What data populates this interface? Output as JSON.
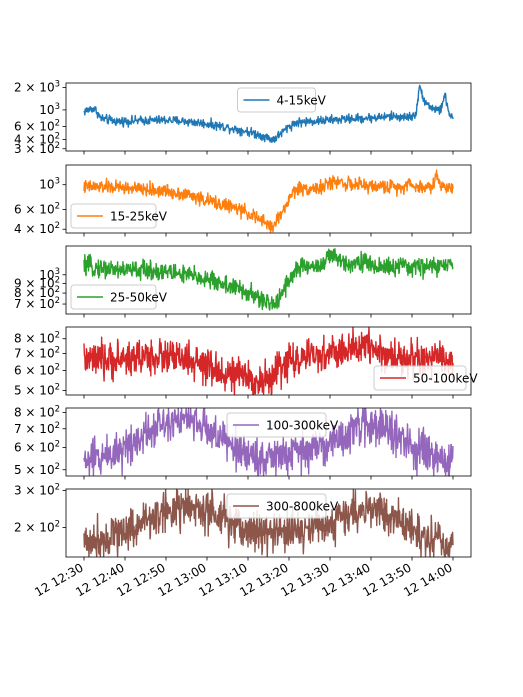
{
  "chart_data": {
    "type": "line",
    "x_ticks": [
      "12 12:30",
      "12 12:40",
      "12 12:50",
      "12 13:00",
      "12 13:10",
      "12 13:20",
      "12 13:30",
      "12 13:40",
      "12 13:50",
      "12 14:00"
    ],
    "x_range_minutes": [
      0,
      90
    ],
    "panels": [
      {
        "name": "4-15keV",
        "color": "#1f77b4",
        "legend_loc": "upper-center",
        "yscale": "log",
        "ylim": [
          280,
          2300
        ],
        "yticks": [
          {
            "v": 2000,
            "m": "2",
            "e": "3"
          },
          {
            "v": 1000,
            "m": "",
            "e": "3"
          },
          {
            "v": 600,
            "m": "6",
            "e": "2"
          },
          {
            "v": 400,
            "m": "4",
            "e": "2"
          },
          {
            "v": 300,
            "m": "3",
            "e": "2"
          }
        ],
        "noise": 0.03,
        "points": [
          [
            0,
            950
          ],
          [
            2,
            1050
          ],
          [
            3,
            980
          ],
          [
            4,
            770
          ],
          [
            8,
            700
          ],
          [
            15,
            720
          ],
          [
            20,
            730
          ],
          [
            25,
            700
          ],
          [
            30,
            650
          ],
          [
            35,
            580
          ],
          [
            40,
            510
          ],
          [
            44,
            440
          ],
          [
            46,
            400
          ],
          [
            47,
            430
          ],
          [
            48,
            480
          ],
          [
            50,
            600
          ],
          [
            52,
            680
          ],
          [
            55,
            700
          ],
          [
            60,
            730
          ],
          [
            65,
            760
          ],
          [
            70,
            780
          ],
          [
            75,
            820
          ],
          [
            78,
            800
          ],
          [
            80,
            810
          ],
          [
            81,
            900
          ],
          [
            82,
            2050
          ],
          [
            83,
            1300
          ],
          [
            85,
            1050
          ],
          [
            87,
            980
          ],
          [
            88,
            1600
          ],
          [
            88.6,
            1100
          ],
          [
            89,
            900
          ],
          [
            90,
            780
          ]
        ]
      },
      {
        "name": "15-25keV",
        "color": "#ff7f0e",
        "legend_loc": "lower-left",
        "yscale": "log",
        "ylim": [
          370,
          1500
        ],
        "yticks": [
          {
            "v": 1000,
            "m": "",
            "e": "3"
          },
          {
            "v": 600,
            "m": "6",
            "e": "2"
          },
          {
            "v": 400,
            "m": "4",
            "e": "2"
          }
        ],
        "noise": 0.03,
        "points": [
          [
            0,
            950
          ],
          [
            5,
            960
          ],
          [
            10,
            940
          ],
          [
            15,
            900
          ],
          [
            20,
            880
          ],
          [
            25,
            820
          ],
          [
            30,
            720
          ],
          [
            35,
            650
          ],
          [
            40,
            560
          ],
          [
            43,
            480
          ],
          [
            45,
            440
          ],
          [
            46,
            420
          ],
          [
            47,
            470
          ],
          [
            49,
            620
          ],
          [
            50,
            740
          ],
          [
            51,
            860
          ],
          [
            52,
            920
          ],
          [
            55,
            930
          ],
          [
            58,
            940
          ],
          [
            60,
            1030
          ],
          [
            62,
            1080
          ],
          [
            65,
            1000
          ],
          [
            70,
            970
          ],
          [
            75,
            960
          ],
          [
            78,
            950
          ],
          [
            79,
            1100
          ],
          [
            80,
            950
          ],
          [
            85,
            960
          ],
          [
            86,
            1250
          ],
          [
            87,
            960
          ],
          [
            90,
            950
          ]
        ]
      },
      {
        "name": "25-50keV",
        "color": "#2ca02c",
        "legend_loc": "lower-left",
        "yscale": "log",
        "ylim": [
          620,
          1420
        ],
        "yticks": [
          {
            "v": 1000,
            "m": "",
            "e": "3"
          },
          {
            "v": 900,
            "m": "9",
            "e": "2"
          },
          {
            "v": 800,
            "m": "8",
            "e": "2"
          },
          {
            "v": 700,
            "m": "7",
            "e": "2"
          }
        ],
        "noise": 0.025,
        "points": [
          [
            0,
            1110
          ],
          [
            5,
            1080
          ],
          [
            10,
            1060
          ],
          [
            15,
            1060
          ],
          [
            20,
            1040
          ],
          [
            25,
            1000
          ],
          [
            30,
            950
          ],
          [
            35,
            880
          ],
          [
            40,
            800
          ],
          [
            43,
            740
          ],
          [
            45,
            700
          ],
          [
            46,
            690
          ],
          [
            47,
            730
          ],
          [
            48,
            790
          ],
          [
            50,
            940
          ],
          [
            52,
            1080
          ],
          [
            55,
            1110
          ],
          [
            58,
            1120
          ],
          [
            59,
            1200
          ],
          [
            60,
            1260
          ],
          [
            62,
            1200
          ],
          [
            65,
            1150
          ],
          [
            68,
            1190
          ],
          [
            70,
            1110
          ],
          [
            75,
            1100
          ],
          [
            80,
            1100
          ],
          [
            85,
            1110
          ],
          [
            90,
            1120
          ]
        ]
      },
      {
        "name": "50-100keV",
        "color": "#d62728",
        "legend_loc": "lower-right",
        "yscale": "log",
        "ylim": [
          480,
          890
        ],
        "yticks": [
          {
            "v": 800,
            "m": "8",
            "e": "2"
          },
          {
            "v": 700,
            "m": "7",
            "e": "2"
          },
          {
            "v": 600,
            "m": "6",
            "e": "2"
          },
          {
            "v": 500,
            "m": "5",
            "e": "2"
          }
        ],
        "noise": 0.035,
        "points": [
          [
            0,
            660
          ],
          [
            5,
            650
          ],
          [
            10,
            670
          ],
          [
            15,
            680
          ],
          [
            20,
            680
          ],
          [
            25,
            660
          ],
          [
            30,
            610
          ],
          [
            35,
            580
          ],
          [
            40,
            560
          ],
          [
            44,
            540
          ],
          [
            46,
            560
          ],
          [
            48,
            620
          ],
          [
            50,
            660
          ],
          [
            55,
            670
          ],
          [
            60,
            700
          ],
          [
            65,
            720
          ],
          [
            68,
            740
          ],
          [
            69,
            800
          ],
          [
            70,
            760
          ],
          [
            72,
            700
          ],
          [
            75,
            680
          ],
          [
            80,
            670
          ],
          [
            85,
            660
          ],
          [
            90,
            660
          ]
        ]
      },
      {
        "name": "100-300keV",
        "color": "#9467bd",
        "legend_loc": "upper-center",
        "yscale": "log",
        "ylim": [
          475,
          830
        ],
        "yticks": [
          {
            "v": 800,
            "m": "8",
            "e": "2"
          },
          {
            "v": 700,
            "m": "7",
            "e": "2"
          },
          {
            "v": 600,
            "m": "6",
            "e": "2"
          },
          {
            "v": 500,
            "m": "5",
            "e": "2"
          }
        ],
        "noise": 0.035,
        "points": [
          [
            0,
            535
          ],
          [
            5,
            560
          ],
          [
            10,
            600
          ],
          [
            15,
            680
          ],
          [
            20,
            750
          ],
          [
            22,
            770
          ],
          [
            25,
            760
          ],
          [
            30,
            700
          ],
          [
            35,
            620
          ],
          [
            40,
            565
          ],
          [
            45,
            550
          ],
          [
            50,
            565
          ],
          [
            55,
            590
          ],
          [
            60,
            620
          ],
          [
            65,
            680
          ],
          [
            68,
            720
          ],
          [
            70,
            730
          ],
          [
            72,
            720
          ],
          [
            75,
            680
          ],
          [
            80,
            600
          ],
          [
            85,
            550
          ],
          [
            90,
            530
          ]
        ]
      },
      {
        "name": "300-800keV",
        "color": "#8c564b",
        "legend_loc": "upper-center",
        "yscale": "log",
        "ylim": [
          145,
          305
        ],
        "yticks": [
          {
            "v": 300,
            "m": "3",
            "e": "2"
          },
          {
            "v": 200,
            "m": "2",
            "e": "2"
          }
        ],
        "noise": 0.05,
        "points": [
          [
            0,
            170
          ],
          [
            5,
            180
          ],
          [
            10,
            195
          ],
          [
            15,
            215
          ],
          [
            20,
            240
          ],
          [
            22,
            248
          ],
          [
            25,
            250
          ],
          [
            30,
            235
          ],
          [
            35,
            210
          ],
          [
            40,
            195
          ],
          [
            45,
            190
          ],
          [
            50,
            190
          ],
          [
            55,
            200
          ],
          [
            60,
            210
          ],
          [
            65,
            235
          ],
          [
            68,
            245
          ],
          [
            70,
            248
          ],
          [
            72,
            240
          ],
          [
            75,
            225
          ],
          [
            80,
            195
          ],
          [
            85,
            175
          ],
          [
            90,
            170
          ]
        ]
      }
    ]
  }
}
